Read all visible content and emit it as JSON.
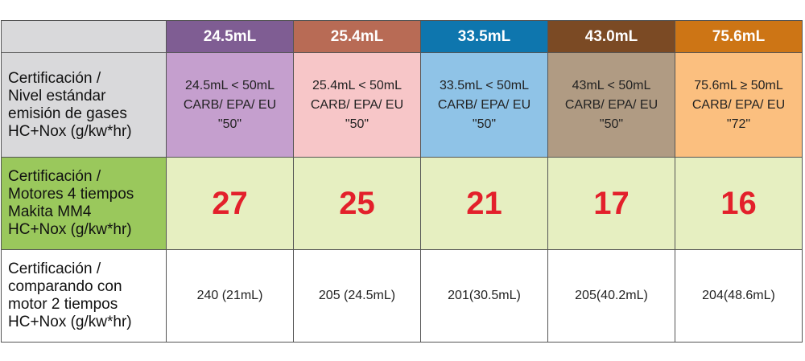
{
  "chart_data": {
    "type": "table",
    "columns": [
      "24.5mL",
      "25.4mL",
      "33.5mL",
      "43.0mL",
      "75.6mL"
    ],
    "header_colors": [
      "#7f5d93",
      "#b86b55",
      "#0e76ae",
      "#7b4a24",
      "#cd7515"
    ],
    "standard_colors": [
      "#c59fce",
      "#f7c6c8",
      "#8fc3e7",
      "#b09b83",
      "#fbbf7f"
    ],
    "rows": [
      {
        "label_lines": [
          "Certificación /",
          "Nivel estándar",
          "emisión de gases",
          "HC+Nox (g/kw*hr)"
        ],
        "cells": [
          [
            "24.5mL < 50mL",
            "CARB/ EPA/ EU",
            "\"50\""
          ],
          [
            "25.4mL < 50mL",
            "CARB/ EPA/ EU",
            "\"50\""
          ],
          [
            "33.5mL < 50mL",
            "CARB/ EPA/ EU",
            "\"50\""
          ],
          [
            "43mL < 50mL",
            "CARB/ EPA/ EU",
            "\"50\""
          ],
          [
            "75.6mL ≥ 50mL",
            "CARB/ EPA/ EU",
            "\"72\""
          ]
        ]
      },
      {
        "label_lines": [
          "Certificación /",
          "Motores 4 tiempos",
          "Makita MM4",
          "HC+Nox (g/kw*hr)"
        ],
        "values": [
          27,
          25,
          21,
          17,
          16
        ]
      },
      {
        "label_lines": [
          "Certificación /",
          "comparando con",
          "motor 2 tiempos",
          "HC+Nox (g/kw*hr)"
        ],
        "cells": [
          "240 (21mL)",
          "205 (24.5mL)",
          "201(30.5mL)",
          "205(40.2mL)",
          "204(48.6mL)"
        ]
      }
    ]
  }
}
